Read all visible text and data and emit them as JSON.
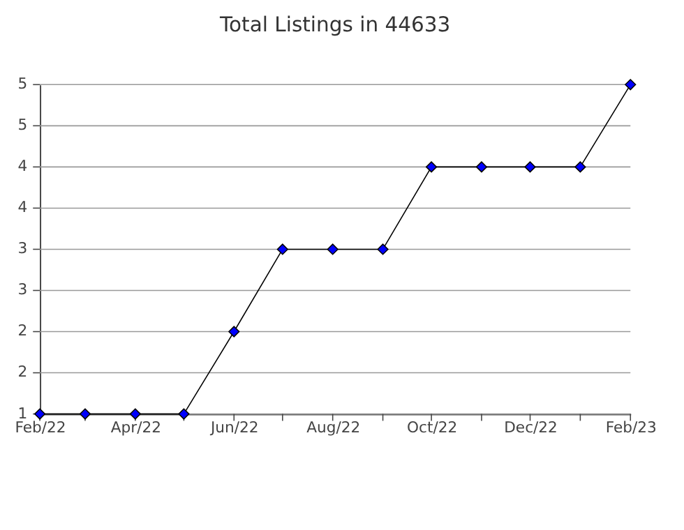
{
  "chart_data": {
    "type": "line",
    "title": "Total Listings in 44633",
    "x": [
      "2022-02",
      "2022-03",
      "2022-04",
      "2022-05",
      "2022-06",
      "2022-07",
      "2022-08",
      "2022-09",
      "2022-10",
      "2022-11",
      "2022-12",
      "2023-01",
      "2023-02"
    ],
    "series": [
      {
        "color": "#0000ff",
        "values": [
          1,
          1,
          1,
          1,
          2,
          3,
          3,
          3,
          4,
          4,
          4,
          4,
          5
        ]
      }
    ],
    "xlim": [
      "2022-02",
      "2023-02"
    ],
    "xticks": [
      {
        "value": "2022-02",
        "label": "Feb/22"
      },
      {
        "value": "2022-03",
        "label": null
      },
      {
        "value": "2022-04",
        "label": "Apr/22"
      },
      {
        "value": "2022-05",
        "label": null
      },
      {
        "value": "2022-06",
        "label": "Jun/22"
      },
      {
        "value": "2022-07",
        "label": null
      },
      {
        "value": "2022-08",
        "label": "Aug/22"
      },
      {
        "value": "2022-09",
        "label": null
      },
      {
        "value": "2022-10",
        "label": "Oct/22"
      },
      {
        "value": "2022-11",
        "label": null
      },
      {
        "value": "2022-12",
        "label": "Dec/22"
      },
      {
        "value": "2023-01",
        "label": null
      },
      {
        "value": "2023-02",
        "label": "Feb/23"
      }
    ],
    "ylim": [
      1,
      5
    ],
    "yticks": [
      1,
      {
        "value": 1.5,
        "label": "2"
      },
      2,
      {
        "value": 2.5,
        "label": "3"
      },
      3,
      {
        "value": 3.5,
        "label": "4"
      },
      4,
      {
        "value": 4.5,
        "label": "5"
      },
      5
    ],
    "grid": "y",
    "marker": "diamond",
    "line_style": "solid"
  }
}
